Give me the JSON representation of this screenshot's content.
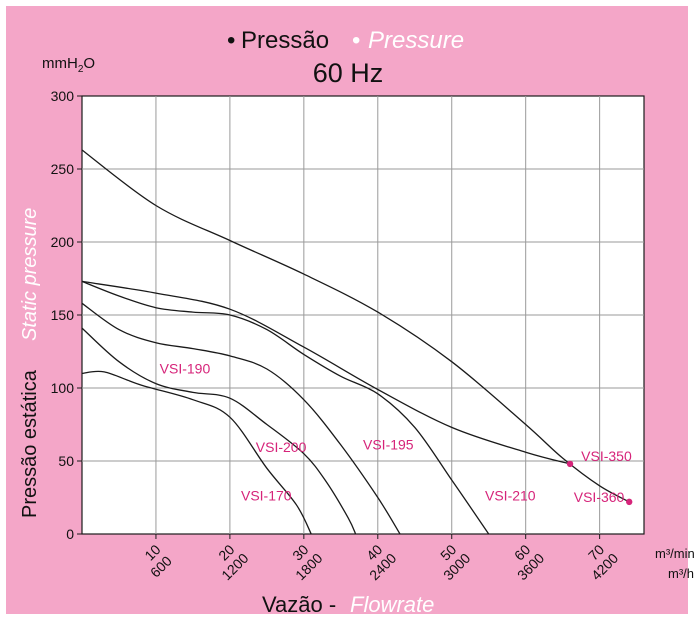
{
  "colors": {
    "background": "#f4a6c8",
    "plot": "#ffffff",
    "accent": "#d6247a",
    "curve": "#1a1a1a",
    "grid": "#9a9a9a"
  },
  "title": {
    "bullet": "•",
    "main_pt": "Pressão",
    "main_en": "Pressure",
    "frequency": "60 Hz",
    "unit": "mmH2O"
  },
  "chart_data": {
    "type": "line",
    "xlabel_pt": "Vazão -",
    "xlabel_en": "Flowrate",
    "ylabel_pt": "Pressão estática",
    "ylabel_en": "Static pressure",
    "x_unit_primary": "m³/min",
    "x_unit_secondary": "m³/h",
    "xlim": [
      0,
      76
    ],
    "ylim": [
      0,
      300
    ],
    "x_ticks": [
      {
        "value": 10,
        "label": "10",
        "label2": "600"
      },
      {
        "value": 20,
        "label": "20",
        "label2": "1200"
      },
      {
        "value": 30,
        "label": "30",
        "label2": "1800"
      },
      {
        "value": 40,
        "label": "40",
        "label2": "2400"
      },
      {
        "value": 50,
        "label": "50",
        "label2": "3000"
      },
      {
        "value": 60,
        "label": "60",
        "label2": "3600"
      },
      {
        "value": 70,
        "label": "70",
        "label2": "4200"
      }
    ],
    "y_ticks": [
      0,
      50,
      100,
      150,
      200,
      250,
      300
    ],
    "grid": true,
    "series": [
      {
        "name": "VSI-360",
        "points": [
          [
            0,
            263
          ],
          [
            10,
            225
          ],
          [
            20,
            201
          ],
          [
            30,
            178
          ],
          [
            40,
            152
          ],
          [
            50,
            118
          ],
          [
            60,
            75
          ],
          [
            65,
            52
          ],
          [
            70,
            33
          ],
          [
            74,
            22
          ]
        ],
        "marker_end": true
      },
      {
        "name": "VSI-350",
        "points": [
          [
            0,
            173
          ],
          [
            10,
            165
          ],
          [
            20,
            154
          ],
          [
            30,
            128
          ],
          [
            40,
            99
          ],
          [
            50,
            73
          ],
          [
            60,
            56
          ],
          [
            66,
            48
          ]
        ],
        "marker_end": true
      },
      {
        "name": "VSI-210",
        "points": [
          [
            0,
            173
          ],
          [
            5,
            163
          ],
          [
            10,
            155
          ],
          [
            15,
            152
          ],
          [
            20,
            150
          ],
          [
            25,
            140
          ],
          [
            30,
            123
          ],
          [
            35,
            108
          ],
          [
            40,
            96
          ],
          [
            45,
            73
          ],
          [
            50,
            37
          ],
          [
            55,
            0
          ]
        ]
      },
      {
        "name": "VSI-195",
        "points": [
          [
            0,
            158
          ],
          [
            5,
            140
          ],
          [
            10,
            131
          ],
          [
            15,
            127
          ],
          [
            20,
            122
          ],
          [
            25,
            113
          ],
          [
            30,
            92
          ],
          [
            35,
            61
          ],
          [
            40,
            25
          ],
          [
            43,
            0
          ]
        ]
      },
      {
        "name": "VSI-200",
        "points": [
          [
            0,
            141
          ],
          [
            5,
            118
          ],
          [
            10,
            103
          ],
          [
            15,
            97
          ],
          [
            20,
            93
          ],
          [
            25,
            75
          ],
          [
            30,
            55
          ],
          [
            33,
            36
          ],
          [
            36,
            11
          ],
          [
            37,
            0
          ]
        ]
      },
      {
        "name": "VSI-170",
        "points": [
          [
            0,
            110
          ],
          [
            3,
            111
          ],
          [
            8,
            102
          ],
          [
            15,
            92
          ],
          [
            20,
            80
          ],
          [
            25,
            45
          ],
          [
            29,
            20
          ],
          [
            31,
            0
          ]
        ]
      }
    ],
    "labels": [
      {
        "text": "VSI-190",
        "x": 10.5,
        "y": 110
      },
      {
        "text": "VSI-200",
        "x": 23.5,
        "y": 56
      },
      {
        "text": "VSI-195",
        "x": 38,
        "y": 58
      },
      {
        "text": "VSI-170",
        "x": 21.5,
        "y": 23
      },
      {
        "text": "VSI-210",
        "x": 54.5,
        "y": 23
      },
      {
        "text": "VSI-350",
        "x": 67.5,
        "y": 50
      },
      {
        "text": "VSI-360",
        "x": 66.5,
        "y": 22
      }
    ]
  }
}
